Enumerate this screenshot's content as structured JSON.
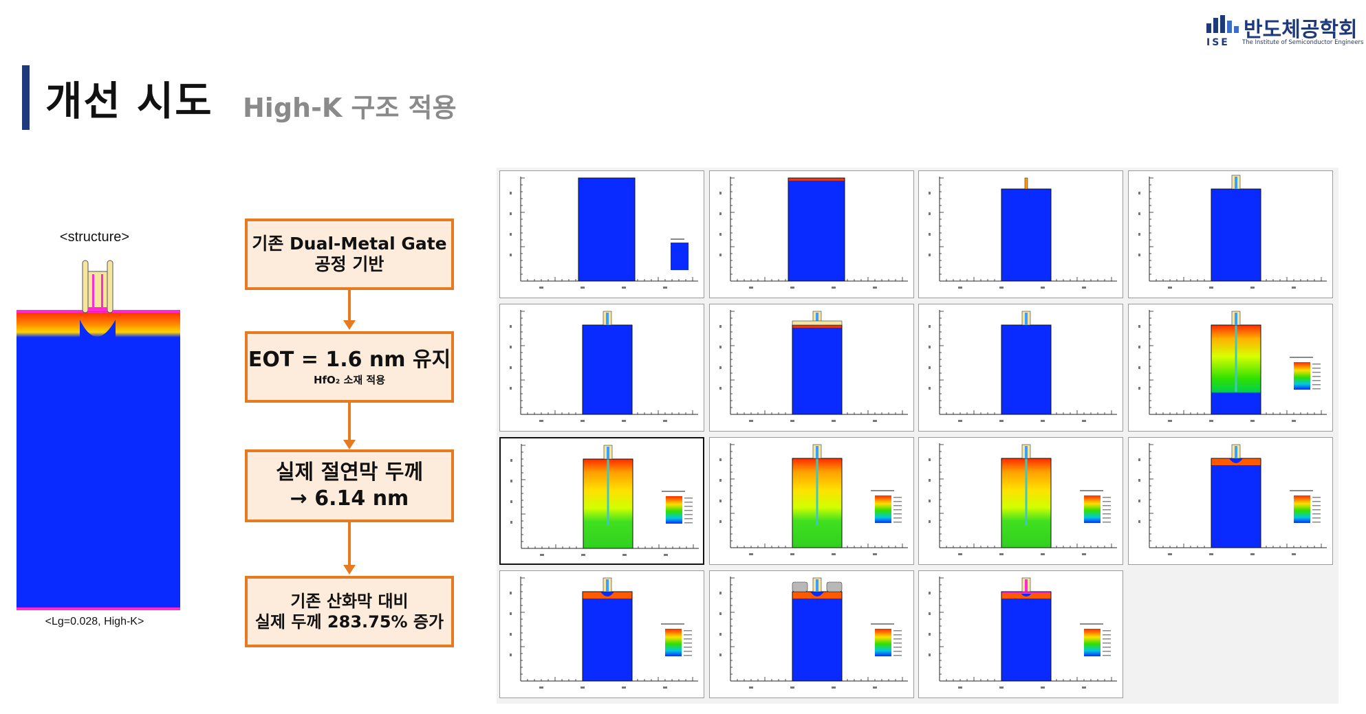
{
  "header": {
    "title": "개선 시도",
    "subtitle": "High-K 구조 적용"
  },
  "logo": {
    "korean_name": "반도체공학회",
    "abbr": "ISE",
    "english_name": "The Institute of Semiconductor Engineers"
  },
  "structure": {
    "label": "<structure>",
    "caption": "<Lg=0.028, High-K>"
  },
  "flow": {
    "step1": {
      "line1": "기존 Dual-Metal Gate",
      "line2": "공정 기반"
    },
    "step2": {
      "line1": "EOT = 1.6 nm 유지",
      "line2": "HfO₂ 소재 적용"
    },
    "step3": {
      "line1": "실제 절연막 두께",
      "line2": "→ 6.14 nm"
    },
    "step4": {
      "line1": "기존 산화막 대비",
      "line2": "실제 두께 283.75% 증가"
    }
  },
  "colors": {
    "accent": "#e57a21",
    "box_fill": "#fdebdc",
    "title_bar": "#1f3a7a",
    "subtitle": "#8a8a8a",
    "silicon_blue": "#0a2bff"
  },
  "simulation": {
    "panels": [
      {
        "stage": "substrate",
        "gate": "none",
        "profile": "flat",
        "legend": true,
        "highlight": false
      },
      {
        "stage": "oxide",
        "gate": "none",
        "profile": "thin-top",
        "legend": false,
        "highlight": false
      },
      {
        "stage": "gate",
        "gate": "single",
        "profile": "flat",
        "legend": false,
        "highlight": false
      },
      {
        "stage": "gate",
        "gate": "dual",
        "profile": "flat",
        "legend": false,
        "highlight": false
      },
      {
        "stage": "spacer",
        "gate": "dual",
        "profile": "flat",
        "legend": false,
        "highlight": false
      },
      {
        "stage": "spacer",
        "gate": "dual-wide",
        "profile": "thin-top",
        "legend": false,
        "highlight": false
      },
      {
        "stage": "etch",
        "gate": "dual",
        "profile": "flat",
        "legend": false,
        "highlight": false
      },
      {
        "stage": "implant",
        "gate": "dual",
        "profile": "deep",
        "legend": true,
        "highlight": false
      },
      {
        "stage": "implant",
        "gate": "dual",
        "profile": "deep-yellow",
        "legend": true,
        "highlight": true
      },
      {
        "stage": "implant",
        "gate": "dual",
        "profile": "deep-yellow",
        "legend": true,
        "highlight": false
      },
      {
        "stage": "implant",
        "gate": "dual",
        "profile": "deep-yellow",
        "legend": true,
        "highlight": false
      },
      {
        "stage": "anneal",
        "gate": "dual",
        "profile": "shallow",
        "legend": true,
        "highlight": false
      },
      {
        "stage": "contact",
        "gate": "dual",
        "profile": "shallow",
        "legend": true,
        "highlight": false
      },
      {
        "stage": "contact",
        "gate": "dual-pads",
        "profile": "shallow",
        "legend": true,
        "highlight": false
      },
      {
        "stage": "final",
        "gate": "dual-pink",
        "profile": "shallow",
        "legend": true,
        "highlight": false
      }
    ]
  }
}
